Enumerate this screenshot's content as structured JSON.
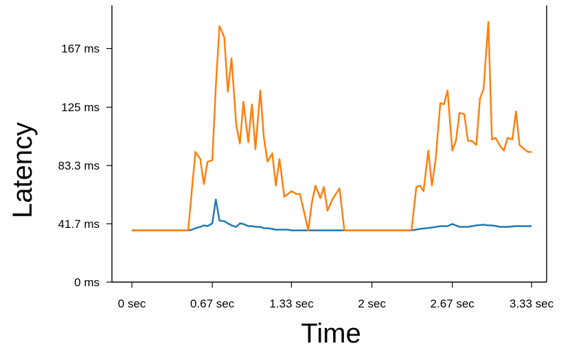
{
  "chart_data": {
    "type": "line",
    "xlabel": "Time",
    "ylabel": "Latency",
    "xlim": [
      -0.15,
      3.5
    ],
    "ylim": [
      0,
      222
    ],
    "grid": false,
    "x_ticks": [
      {
        "value": 0,
        "label": "0 sec"
      },
      {
        "value": 0.67,
        "label": "0.67 sec"
      },
      {
        "value": 1.33,
        "label": "1.33 sec"
      },
      {
        "value": 2,
        "label": "2 sec"
      },
      {
        "value": 2.67,
        "label": "2.67 sec"
      },
      {
        "value": 3.33,
        "label": "3.33 sec"
      }
    ],
    "y_ticks": [
      {
        "value": 0,
        "label": "0 ms"
      },
      {
        "value": 41.7,
        "label": "41.7 ms"
      },
      {
        "value": 83.3,
        "label": "83.3 ms"
      },
      {
        "value": 125,
        "label": "125 ms"
      },
      {
        "value": 167,
        "label": "167 ms"
      }
    ],
    "series": [
      {
        "color": "#1f77b4",
        "x": [
          0,
          0.47,
          0.5,
          0.53,
          0.57,
          0.6,
          0.63,
          0.67,
          0.7,
          0.73,
          0.77,
          0.8,
          0.83,
          0.87,
          0.9,
          0.93,
          0.97,
          1.0,
          1.03,
          1.07,
          1.1,
          1.13,
          1.17,
          1.2,
          1.23,
          1.27,
          1.3,
          1.33,
          1.37,
          1.4,
          1.5,
          1.6,
          1.7,
          1.8,
          1.85,
          2.33,
          2.4,
          2.5,
          2.57,
          2.63,
          2.67,
          2.73,
          2.8,
          2.87,
          2.93,
          2.97,
          3.0,
          3.07,
          3.13,
          3.2,
          3.27,
          3.33
        ],
        "values": [
          37,
          37,
          37.5,
          38.5,
          39.5,
          40.5,
          40,
          42,
          59,
          44,
          43.5,
          42,
          40.5,
          39.5,
          42,
          41.5,
          40,
          40,
          39.5,
          39.5,
          38.5,
          38.5,
          38,
          37.5,
          37.5,
          37.5,
          37.5,
          37,
          37,
          37,
          37,
          37,
          37,
          37,
          37,
          37,
          38,
          39,
          40,
          40,
          41.5,
          39.5,
          39.5,
          40.5,
          41,
          40.5,
          40.5,
          39.5,
          39.5,
          40,
          40,
          40
        ]
      },
      {
        "color": "#ff7f0e",
        "x": [
          0,
          0.47,
          0.5,
          0.53,
          0.57,
          0.6,
          0.63,
          0.67,
          0.7,
          0.73,
          0.77,
          0.8,
          0.83,
          0.87,
          0.9,
          0.93,
          0.97,
          1.0,
          1.03,
          1.07,
          1.1,
          1.13,
          1.17,
          1.2,
          1.23,
          1.27,
          1.3,
          1.33,
          1.37,
          1.4,
          1.43,
          1.47,
          1.5,
          1.53,
          1.57,
          1.6,
          1.63,
          1.67,
          1.7,
          1.73,
          1.77,
          1.8,
          1.83,
          2.33,
          2.37,
          2.4,
          2.43,
          2.47,
          2.5,
          2.53,
          2.57,
          2.6,
          2.63,
          2.67,
          2.7,
          2.73,
          2.77,
          2.8,
          2.83,
          2.87,
          2.9,
          2.93,
          2.97,
          3.0,
          3.03,
          3.07,
          3.1,
          3.13,
          3.17,
          3.2,
          3.23,
          3.27,
          3.3,
          3.33
        ],
        "values": [
          37,
          37,
          66,
          93,
          88,
          70,
          86,
          87,
          140,
          183,
          175,
          136,
          160,
          112,
          99,
          129,
          100,
          127,
          95,
          137,
          103,
          86,
          92,
          69,
          88,
          61,
          63,
          65,
          63,
          63,
          52,
          37,
          57,
          69,
          60,
          68,
          51,
          59,
          63,
          67,
          37,
          37,
          37,
          37,
          68,
          69,
          65,
          94,
          69,
          87,
          128,
          127,
          137,
          94,
          101,
          121,
          120,
          101,
          101,
          98,
          131,
          138,
          186,
          102,
          103,
          97,
          94,
          103,
          102,
          122,
          98,
          95,
          93,
          93
        ]
      }
    ]
  }
}
